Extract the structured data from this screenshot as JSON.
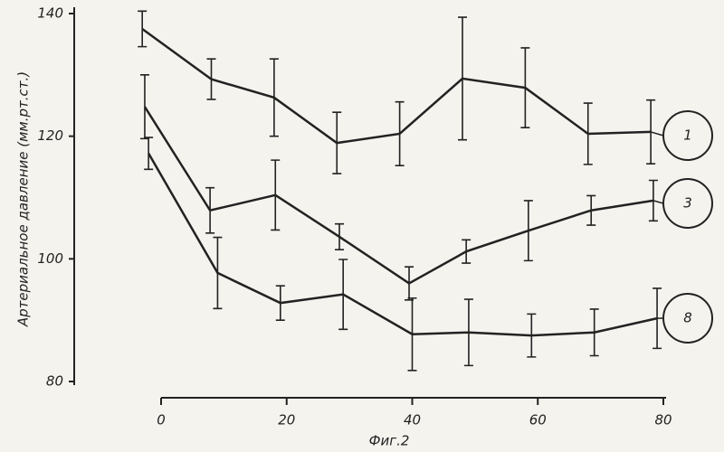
{
  "chart_data": {
    "type": "line",
    "y_label": "Артериальное давление (мм.рт.ст.)",
    "caption": "Фиг.2",
    "xlim": [
      0,
      80
    ],
    "xticks": [
      0,
      20,
      40,
      60,
      80
    ],
    "ylim": [
      80,
      140
    ],
    "yticks": [
      80,
      100,
      120,
      140
    ],
    "series": [
      {
        "name": "1",
        "color": "#222222",
        "x": [
          -3,
          8,
          18,
          28,
          38,
          48,
          58,
          68,
          78
        ],
        "values": [
          137.5,
          129.3,
          126.3,
          118.9,
          120.4,
          129.4,
          127.9,
          120.4,
          120.7
        ],
        "errors": [
          2.9,
          3.3,
          6.3,
          5,
          5.2,
          10,
          6.5,
          5,
          5.2
        ]
      },
      {
        "name": "3",
        "color": "#222222",
        "x": [
          -2.6,
          7.8,
          18.2,
          28.4,
          39.5,
          48.6,
          58.5,
          68.5,
          78.4
        ],
        "values": [
          124.8,
          107.9,
          110.4,
          103.6,
          96,
          101.2,
          104.6,
          107.9,
          109.5
        ],
        "errors": [
          5.2,
          3.7,
          5.7,
          2.1,
          2.7,
          1.9,
          4.9,
          2.4,
          3.3
        ]
      },
      {
        "name": "8",
        "color": "#222222",
        "x": [
          -2,
          9,
          19,
          29,
          40,
          49,
          59,
          69,
          79
        ],
        "values": [
          117.2,
          97.7,
          92.8,
          94.2,
          87.7,
          88,
          87.5,
          88,
          90.3
        ],
        "errors": [
          2.6,
          5.8,
          2.8,
          5.7,
          5.9,
          5.4,
          3.5,
          3.8,
          4.9
        ]
      }
    ]
  }
}
